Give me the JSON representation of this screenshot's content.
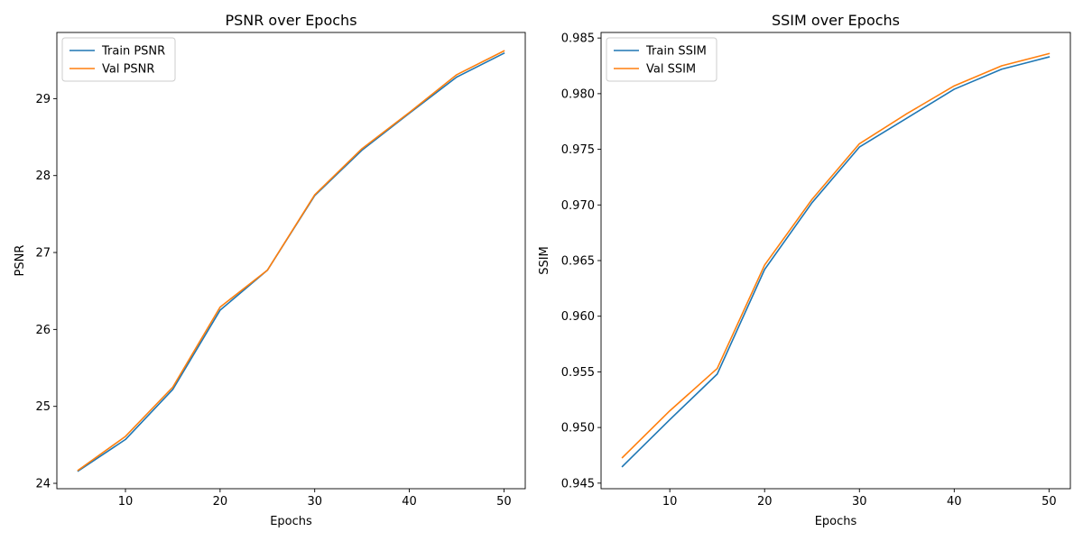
{
  "chart_data": [
    {
      "type": "line",
      "title": "PSNR over Epochs",
      "xlabel": "Epochs",
      "ylabel": "PSNR",
      "xlim": [
        2.75,
        52.25
      ],
      "ylim": [
        23.93,
        29.86
      ],
      "xticks": [
        10,
        20,
        30,
        40,
        50
      ],
      "yticks": [
        24,
        25,
        26,
        27,
        28,
        29
      ],
      "ytick_labels": [
        "24",
        "25",
        "26",
        "27",
        "28",
        "29"
      ],
      "legend": "upper-left",
      "grid": false,
      "x": [
        5,
        10,
        15,
        20,
        25,
        30,
        35,
        40,
        45,
        50
      ],
      "series": [
        {
          "name": "Train PSNR",
          "color": "#1f77b4",
          "values": [
            24.16,
            24.57,
            25.22,
            26.25,
            26.77,
            27.74,
            28.33,
            28.81,
            29.28,
            29.59
          ]
        },
        {
          "name": "Val PSNR",
          "color": "#ff7f0e",
          "values": [
            24.17,
            24.61,
            25.25,
            26.29,
            26.77,
            27.75,
            28.35,
            28.82,
            29.31,
            29.62
          ]
        }
      ]
    },
    {
      "type": "line",
      "title": "SSIM over Epochs",
      "xlabel": "Epochs",
      "ylabel": "SSIM",
      "xlim": [
        2.75,
        52.25
      ],
      "ylim": [
        0.9445,
        0.9855
      ],
      "xticks": [
        10,
        20,
        30,
        40,
        50
      ],
      "yticks": [
        0.945,
        0.95,
        0.955,
        0.96,
        0.965,
        0.97,
        0.975,
        0.98,
        0.985
      ],
      "ytick_labels": [
        "0.945",
        "0.950",
        "0.955",
        "0.960",
        "0.965",
        "0.970",
        "0.975",
        "0.980",
        "0.985"
      ],
      "legend": "upper-left",
      "grid": false,
      "x": [
        5,
        10,
        15,
        20,
        25,
        30,
        35,
        40,
        45,
        50
      ],
      "series": [
        {
          "name": "Train SSIM",
          "color": "#1f77b4",
          "values": [
            0.9465,
            0.9507,
            0.9548,
            0.9642,
            0.9702,
            0.9752,
            0.9778,
            0.9804,
            0.9822,
            0.9833
          ]
        },
        {
          "name": "Val SSIM",
          "color": "#ff7f0e",
          "values": [
            0.9473,
            0.9515,
            0.9553,
            0.9646,
            0.9705,
            0.9755,
            0.9782,
            0.9807,
            0.9825,
            0.9836
          ]
        }
      ]
    }
  ]
}
